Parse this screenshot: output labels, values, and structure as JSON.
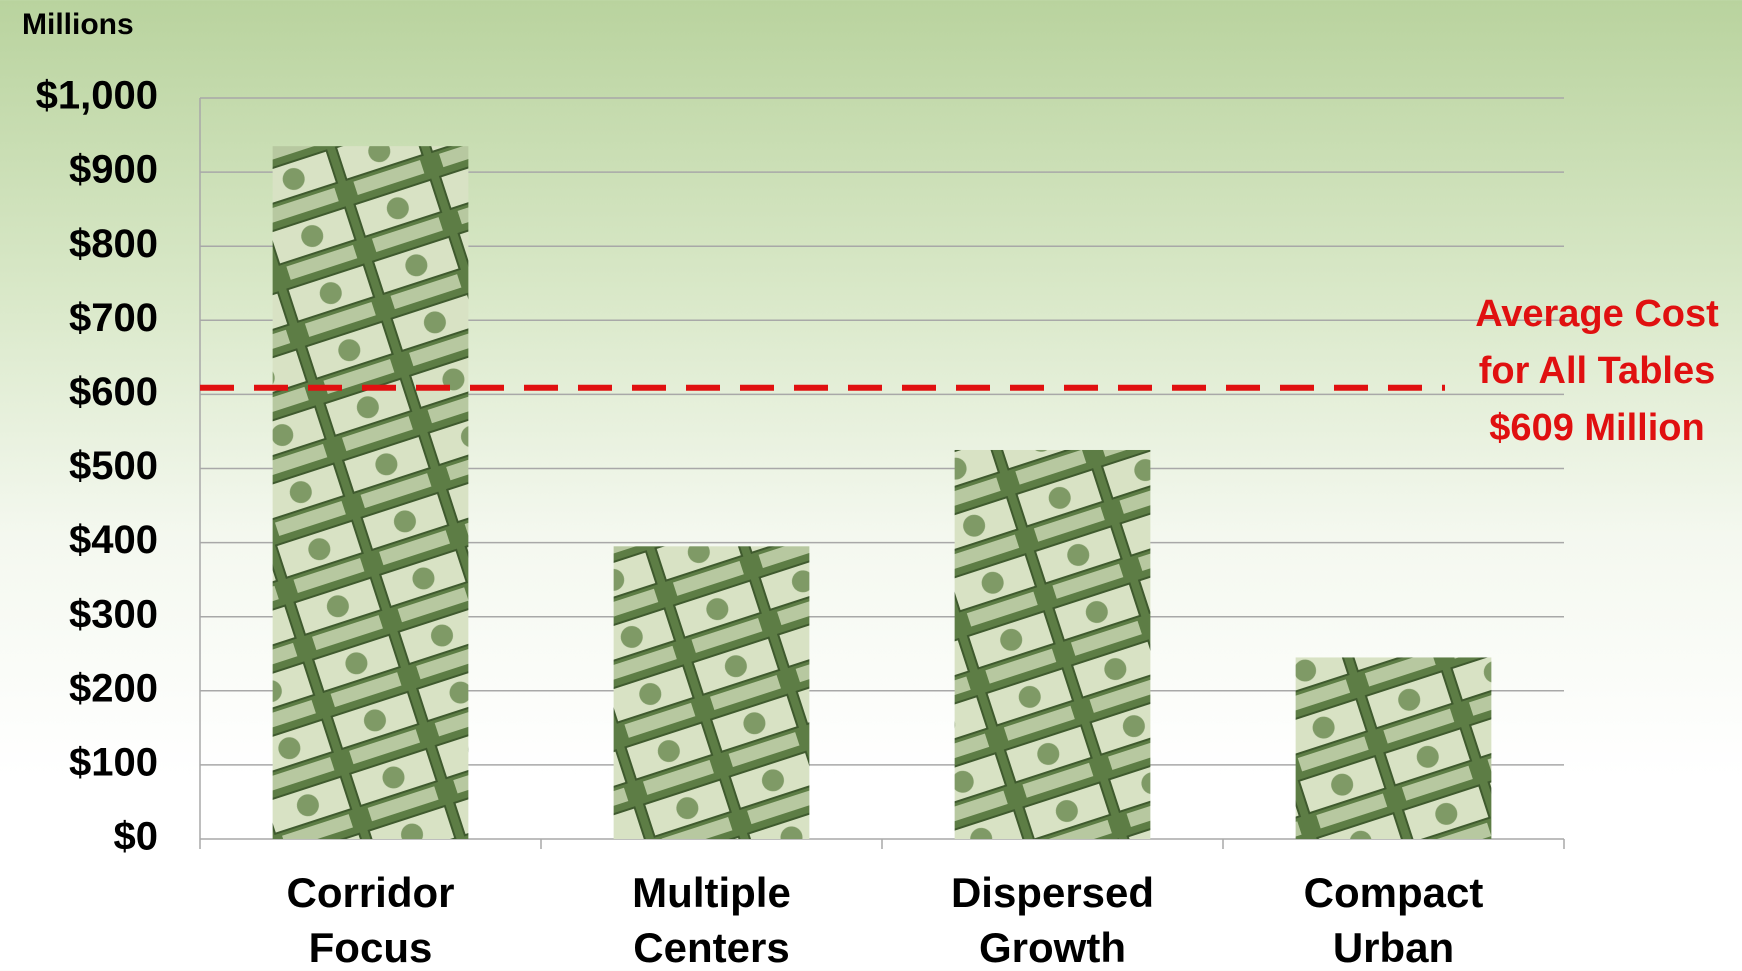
{
  "chart_data": {
    "type": "bar",
    "y_axis_label": "Millions",
    "categories": [
      "Corridor Focus",
      "Multiple Centers",
      "Dispersed Growth",
      "Compact Urban"
    ],
    "values": [
      935,
      395,
      525,
      245
    ],
    "color": "#6f8f4f",
    "ylim": [
      0,
      1000
    ],
    "yticks": [
      {
        "value": 0,
        "label": "$0"
      },
      {
        "value": 100,
        "label": "$100"
      },
      {
        "value": 200,
        "label": "$200"
      },
      {
        "value": 300,
        "label": "$300"
      },
      {
        "value": 400,
        "label": "$400"
      },
      {
        "value": 500,
        "label": "$500"
      },
      {
        "value": 600,
        "label": "$600"
      },
      {
        "value": 700,
        "label": "$700"
      },
      {
        "value": 800,
        "label": "$800"
      },
      {
        "value": 900,
        "label": "$900"
      },
      {
        "value": 1000,
        "label": "$1,000"
      }
    ],
    "grid": true,
    "reference_line": {
      "value": 609,
      "color": "#e01010",
      "label_lines": [
        "Average Cost",
        "for All Tables",
        "$609 Million"
      ]
    }
  }
}
